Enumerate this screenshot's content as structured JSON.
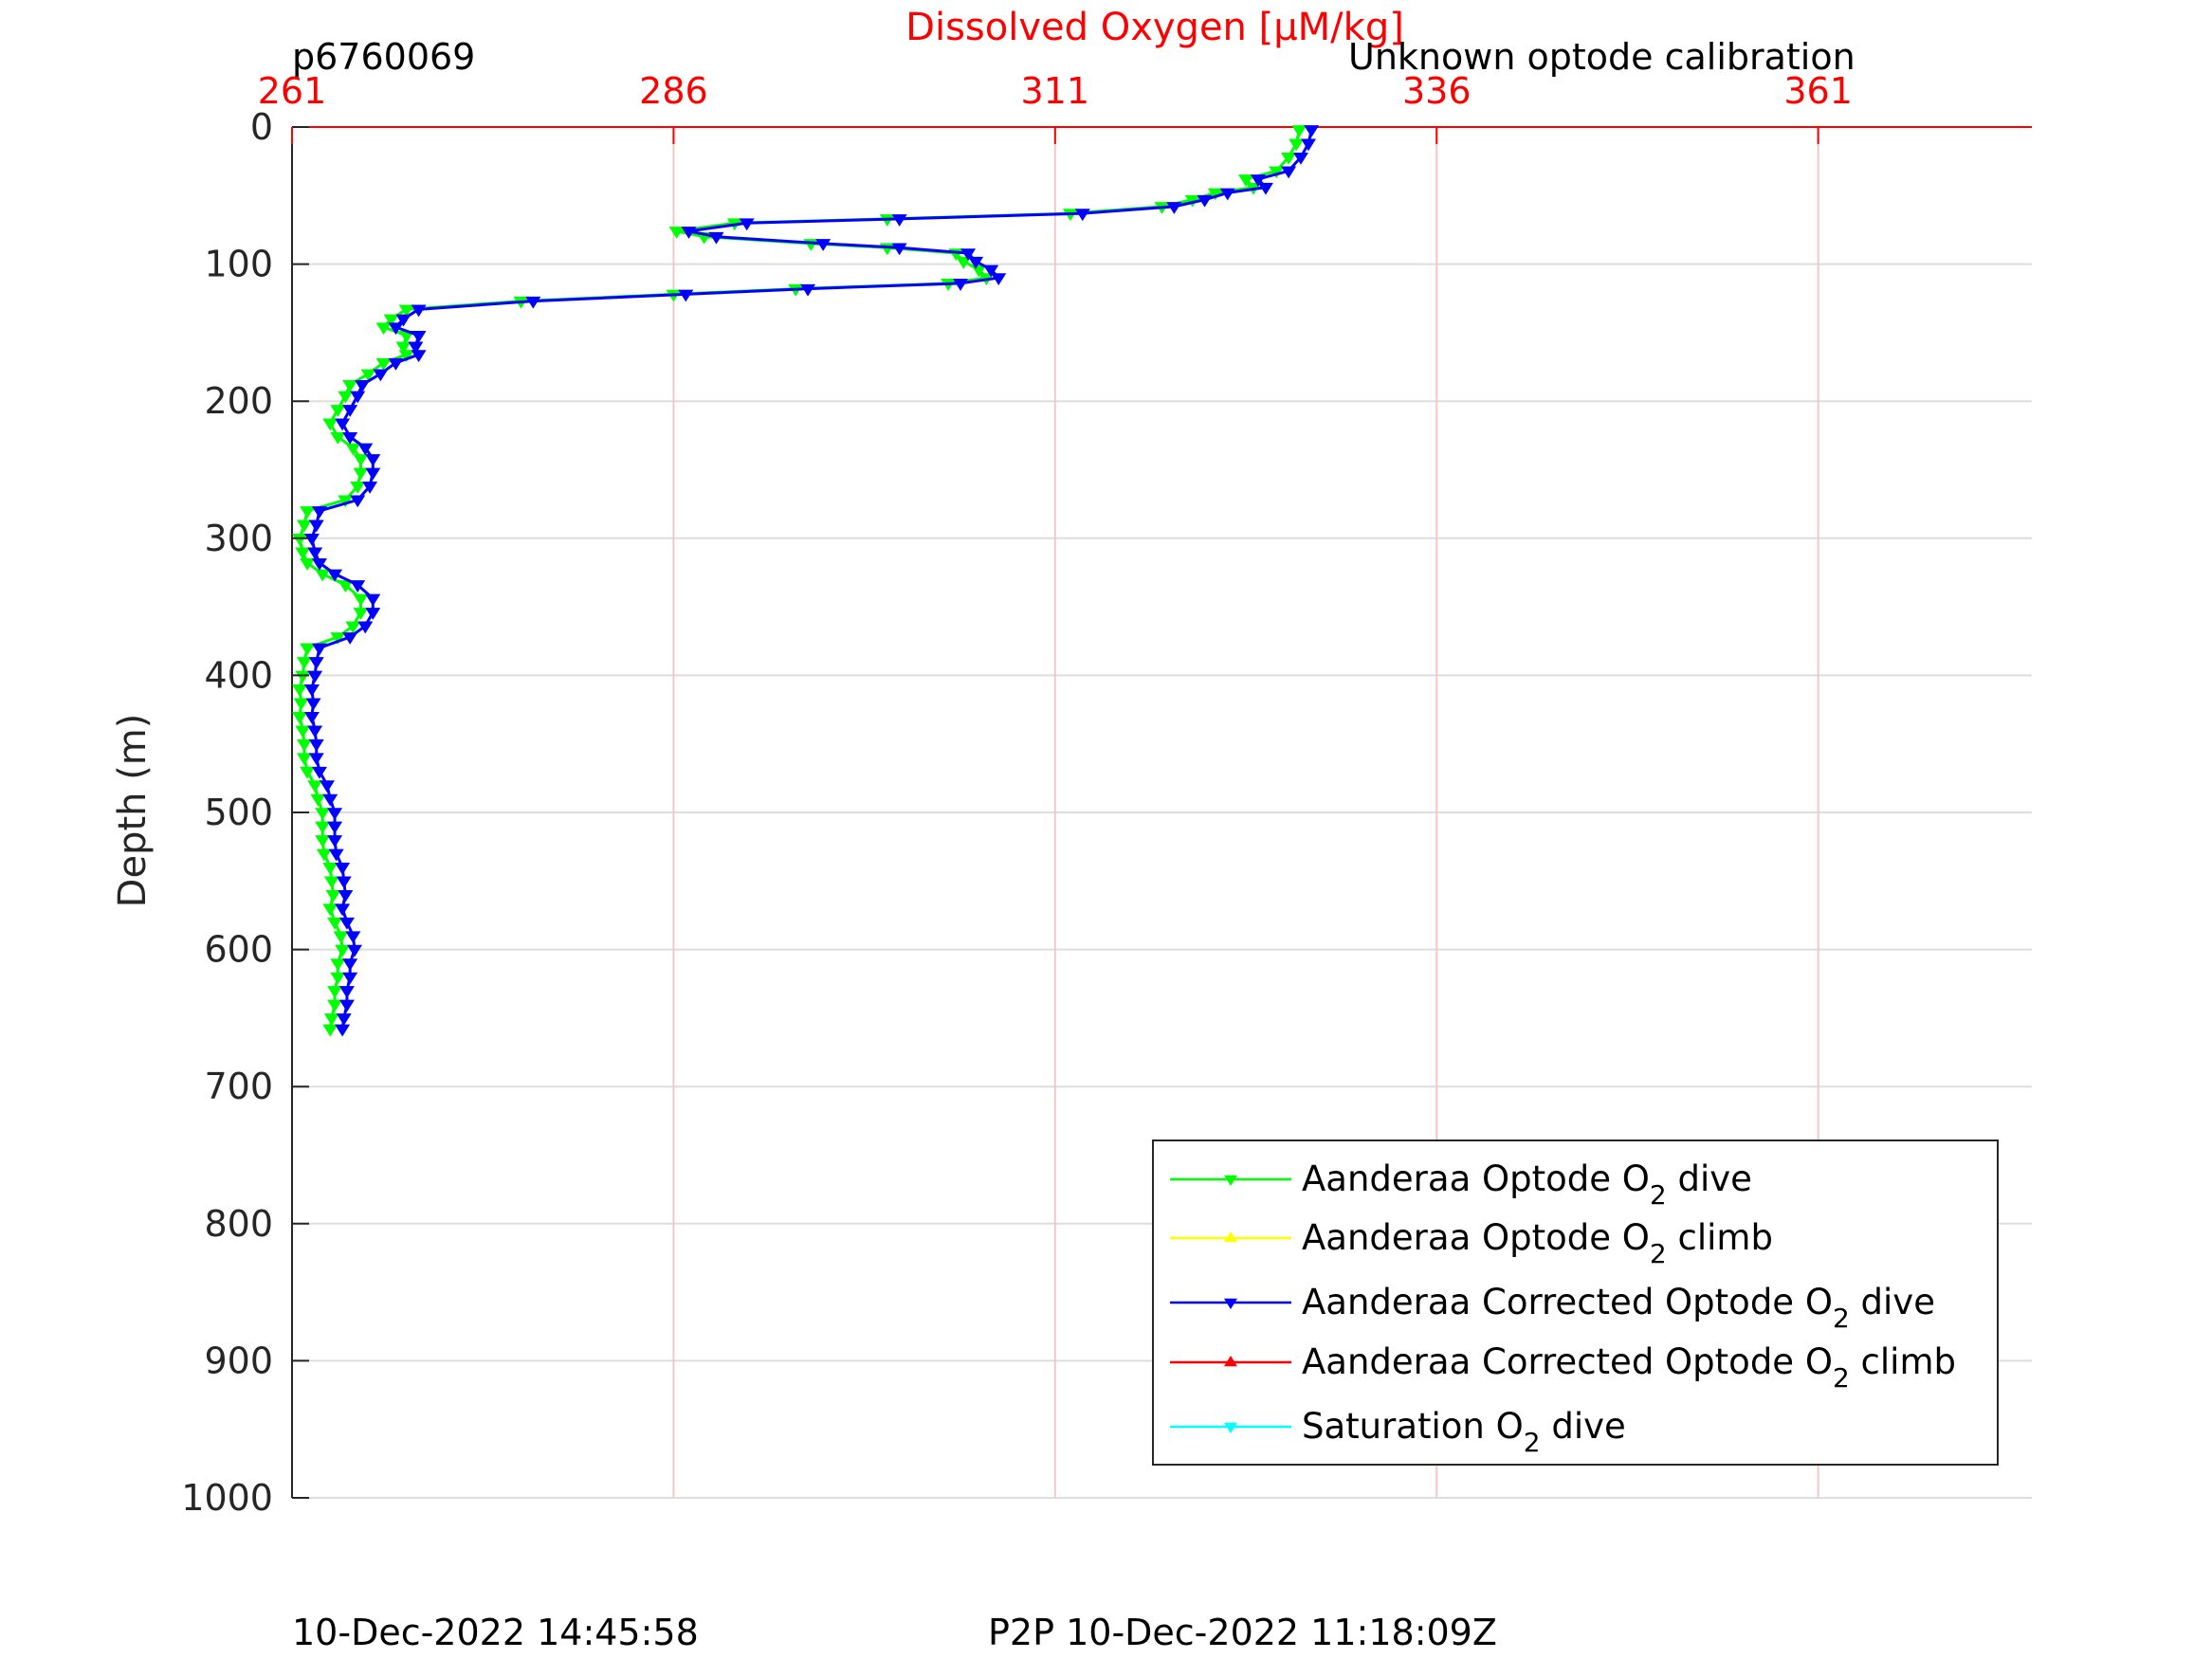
{
  "header": {
    "left": "p6760069",
    "right": "Unknown optode calibration"
  },
  "footer": {
    "left": "10-Dec-2022 14:45:58",
    "center": "P2P 10-Dec-2022 11:18:09Z"
  },
  "colors": {
    "top_axis": "#ff0000",
    "grid_x": "#f2c8c8",
    "grid_y": "#dddddd",
    "dive_green": "#00ff00",
    "climb_yellow": "#ffff00",
    "corrected_dive_blue": "#0000ff",
    "corrected_climb_red": "#ff0000",
    "saturation_cyan": "#00ffff"
  },
  "chart_data": {
    "type": "line",
    "title": "",
    "xlabel": "Dissolved Oxygen [μM/kg]",
    "ylabel": "Depth (m)",
    "xlim": [
      261,
      375
    ],
    "ylim": [
      0,
      1000
    ],
    "y_reversed": true,
    "x_ticks": [
      "261",
      "286",
      "311",
      "336",
      "361"
    ],
    "x_tick_values": [
      261,
      286,
      311,
      336,
      361
    ],
    "y_ticks": [
      "0",
      "100",
      "200",
      "300",
      "400",
      "500",
      "600",
      "700",
      "800",
      "900",
      "1000"
    ],
    "y_tick_values": [
      0,
      100,
      200,
      300,
      400,
      500,
      600,
      700,
      800,
      900,
      1000
    ],
    "grid": true,
    "legend_position": "bottom-right",
    "legend": [
      {
        "prefix": "Aanderaa Optode O",
        "sub": "2",
        "suffix": " dive",
        "color": "#00ff00",
        "marker": "down"
      },
      {
        "prefix": "Aanderaa Optode O",
        "sub": "2",
        "suffix": " climb",
        "color": "#ffff00",
        "marker": "up"
      },
      {
        "prefix": "Aanderaa Corrected Optode O",
        "sub": "2",
        "suffix": " dive",
        "color": "#0000ff",
        "marker": "down"
      },
      {
        "prefix": "Aanderaa Corrected Optode O",
        "sub": "2",
        "suffix": " climb",
        "color": "#ff0000",
        "marker": "up"
      },
      {
        "prefix": "Saturation O",
        "sub": "2",
        "suffix": " dive",
        "color": "#00ffff",
        "marker": "down"
      }
    ],
    "series": [
      {
        "name": "Aanderaa Optode O2 dive",
        "color": "#00ff00",
        "points": [
          [
            327.0,
            2
          ],
          [
            326.8,
            12
          ],
          [
            326.3,
            22
          ],
          [
            325.5,
            32
          ],
          [
            323.5,
            38
          ],
          [
            324.0,
            44
          ],
          [
            321.5,
            48
          ],
          [
            320.0,
            53
          ],
          [
            318.0,
            58
          ],
          [
            312.0,
            63
          ],
          [
            300.0,
            67
          ],
          [
            290.0,
            70
          ],
          [
            286.2,
            76
          ],
          [
            288.0,
            80
          ],
          [
            295.0,
            85
          ],
          [
            300.0,
            88
          ],
          [
            304.5,
            92
          ],
          [
            305.0,
            98
          ],
          [
            306.0,
            104
          ],
          [
            306.5,
            110
          ],
          [
            304.0,
            114
          ],
          [
            294.0,
            118
          ],
          [
            286.0,
            122
          ],
          [
            276.0,
            127
          ],
          [
            268.5,
            133
          ],
          [
            267.5,
            140
          ],
          [
            267.0,
            146
          ],
          [
            268.5,
            152
          ],
          [
            268.3,
            160
          ],
          [
            268.5,
            166
          ],
          [
            267.0,
            172
          ],
          [
            266.0,
            180
          ],
          [
            264.8,
            188
          ],
          [
            264.5,
            196
          ],
          [
            264.0,
            206
          ],
          [
            263.5,
            216
          ],
          [
            264.0,
            226
          ],
          [
            265.0,
            234
          ],
          [
            265.5,
            242
          ],
          [
            265.5,
            252
          ],
          [
            265.3,
            262
          ],
          [
            264.5,
            272
          ],
          [
            262.0,
            280
          ],
          [
            261.8,
            290
          ],
          [
            261.5,
            300
          ],
          [
            261.7,
            310
          ],
          [
            262.0,
            318
          ],
          [
            263.0,
            326
          ],
          [
            264.5,
            334
          ],
          [
            265.5,
            344
          ],
          [
            265.5,
            354
          ],
          [
            265.0,
            364
          ],
          [
            264.0,
            372
          ],
          [
            262.0,
            380
          ],
          [
            261.8,
            390
          ],
          [
            261.7,
            400
          ],
          [
            261.5,
            410
          ],
          [
            261.6,
            420
          ],
          [
            261.5,
            430
          ],
          [
            261.7,
            440
          ],
          [
            261.8,
            450
          ],
          [
            261.8,
            460
          ],
          [
            262.0,
            470
          ],
          [
            262.5,
            480
          ],
          [
            262.7,
            490
          ],
          [
            263.0,
            500
          ],
          [
            263.0,
            510
          ],
          [
            263.0,
            520
          ],
          [
            263.1,
            530
          ],
          [
            263.5,
            540
          ],
          [
            263.6,
            550
          ],
          [
            263.7,
            560
          ],
          [
            263.5,
            570
          ],
          [
            263.8,
            580
          ],
          [
            264.2,
            590
          ],
          [
            264.3,
            600
          ],
          [
            264.0,
            610
          ],
          [
            264.0,
            620
          ],
          [
            263.8,
            630
          ],
          [
            263.8,
            640
          ],
          [
            263.6,
            650
          ],
          [
            263.5,
            658
          ]
        ]
      },
      {
        "name": "Aanderaa Corrected Optode O2 dive",
        "color": "#0000ff",
        "points": [
          [
            327.8,
            2
          ],
          [
            327.6,
            12
          ],
          [
            327.1,
            22
          ],
          [
            326.3,
            32
          ],
          [
            324.3,
            38
          ],
          [
            324.8,
            44
          ],
          [
            322.3,
            48
          ],
          [
            320.8,
            53
          ],
          [
            318.8,
            58
          ],
          [
            312.8,
            63
          ],
          [
            300.8,
            67
          ],
          [
            290.8,
            70
          ],
          [
            287.0,
            76
          ],
          [
            288.8,
            80
          ],
          [
            295.8,
            85
          ],
          [
            300.8,
            88
          ],
          [
            305.3,
            92
          ],
          [
            305.8,
            98
          ],
          [
            306.8,
            104
          ],
          [
            307.3,
            110
          ],
          [
            304.8,
            114
          ],
          [
            294.8,
            118
          ],
          [
            286.8,
            122
          ],
          [
            276.8,
            127
          ],
          [
            269.3,
            133
          ],
          [
            268.3,
            140
          ],
          [
            267.8,
            146
          ],
          [
            269.3,
            152
          ],
          [
            269.1,
            160
          ],
          [
            269.3,
            166
          ],
          [
            267.8,
            172
          ],
          [
            266.8,
            180
          ],
          [
            265.6,
            188
          ],
          [
            265.3,
            196
          ],
          [
            264.8,
            206
          ],
          [
            264.3,
            216
          ],
          [
            264.8,
            226
          ],
          [
            265.8,
            234
          ],
          [
            266.3,
            242
          ],
          [
            266.3,
            252
          ],
          [
            266.1,
            262
          ],
          [
            265.3,
            272
          ],
          [
            262.8,
            280
          ],
          [
            262.6,
            290
          ],
          [
            262.3,
            300
          ],
          [
            262.5,
            310
          ],
          [
            262.8,
            318
          ],
          [
            263.8,
            326
          ],
          [
            265.3,
            334
          ],
          [
            266.3,
            344
          ],
          [
            266.3,
            354
          ],
          [
            265.8,
            364
          ],
          [
            264.8,
            372
          ],
          [
            262.8,
            380
          ],
          [
            262.6,
            390
          ],
          [
            262.5,
            400
          ],
          [
            262.3,
            410
          ],
          [
            262.4,
            420
          ],
          [
            262.3,
            430
          ],
          [
            262.5,
            440
          ],
          [
            262.6,
            450
          ],
          [
            262.6,
            460
          ],
          [
            262.8,
            470
          ],
          [
            263.3,
            480
          ],
          [
            263.5,
            490
          ],
          [
            263.8,
            500
          ],
          [
            263.8,
            510
          ],
          [
            263.8,
            520
          ],
          [
            263.9,
            530
          ],
          [
            264.3,
            540
          ],
          [
            264.4,
            550
          ],
          [
            264.5,
            560
          ],
          [
            264.3,
            570
          ],
          [
            264.6,
            580
          ],
          [
            265.0,
            590
          ],
          [
            265.1,
            600
          ],
          [
            264.8,
            610
          ],
          [
            264.8,
            620
          ],
          [
            264.6,
            630
          ],
          [
            264.6,
            640
          ],
          [
            264.4,
            650
          ],
          [
            264.3,
            658
          ]
        ]
      }
    ]
  }
}
